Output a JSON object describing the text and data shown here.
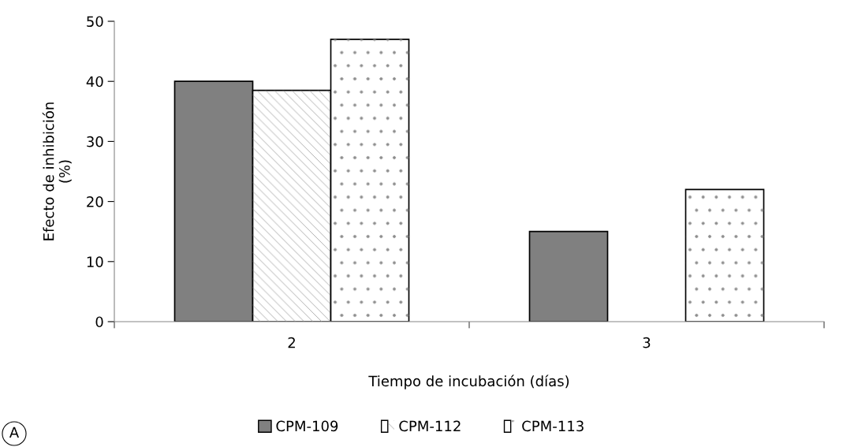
{
  "chart_data": {
    "type": "bar",
    "xlabel": "Tiempo de incubación (días)",
    "ylabel": "Efecto de inhibición\n(%)",
    "categories": [
      "2",
      "3"
    ],
    "series": [
      {
        "name": "CPM-109",
        "color": "#808080",
        "values": [
          40,
          15
        ]
      },
      {
        "name": "CPM-112",
        "color": "#ffffff",
        "values": [
          38.5,
          0
        ]
      },
      {
        "name": "CPM-113",
        "color": "#ffffff",
        "values": [
          47,
          22
        ]
      }
    ],
    "ylim": [
      0,
      50
    ],
    "yticks": [
      0,
      10,
      20,
      30,
      40,
      50
    ],
    "grid": false,
    "legend": "bottom",
    "annotations": [
      "A"
    ]
  }
}
